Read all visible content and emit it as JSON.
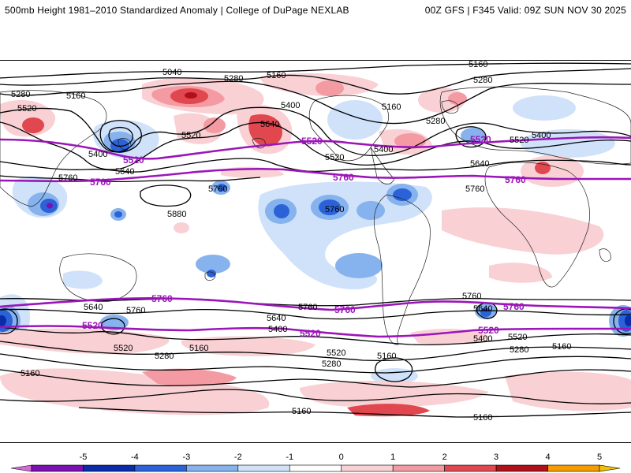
{
  "header": {
    "title": "500mb Height 1981–2010 Standardized Anomaly | College of DuPage NEXLAB",
    "run_info": "00Z GFS | F345 Valid: 09Z SUN NOV 30 2025"
  },
  "colors": {
    "reference_contour": "#9b15b9",
    "contour": "#000000",
    "coastline": "#222222"
  },
  "contour_labels": {
    "c5040": "5040",
    "c5160": "5160",
    "c5280": "5280",
    "c5400": "5400",
    "c5520": "5520",
    "c5640": "5640",
    "c5760": "5760",
    "c5880": "5880"
  },
  "colorbar": {
    "ticks": [
      "-5",
      "-4",
      "-3",
      "-2",
      "-1",
      "0",
      "1",
      "2",
      "3",
      "4",
      "5"
    ],
    "colors": [
      "#d46bd8",
      "#7a11b0",
      "#0a2ca8",
      "#2c62d8",
      "#86b2ee",
      "#cfe2fa",
      "#ffffff",
      "#f9d0d4",
      "#f49aa2",
      "#e0474f",
      "#b0101a",
      "#f59c00",
      "#f2c200"
    ]
  }
}
